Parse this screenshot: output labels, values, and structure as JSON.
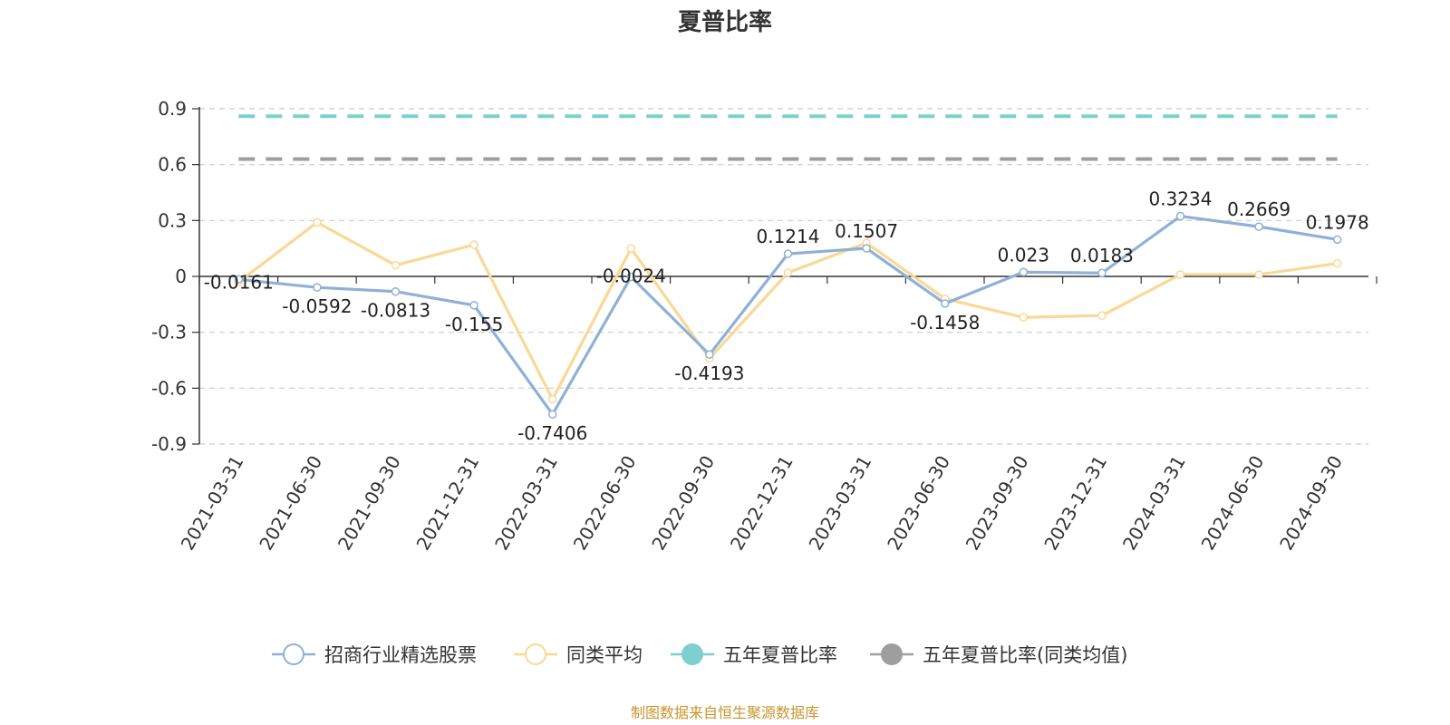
{
  "chart_data": {
    "type": "line",
    "title": "夏普比率",
    "source_note": "制图数据来自恒生聚源数据库",
    "ylim": [
      -0.9,
      0.9
    ],
    "yticks": [
      0.9,
      0.6,
      0.3,
      0,
      -0.3,
      -0.6,
      -0.9
    ],
    "y_tick_labels": [
      "0.9",
      "0.6",
      "0.3",
      "0",
      "-0.3",
      "-0.6",
      "-0.9"
    ],
    "grid": true,
    "legend_position": "bottom",
    "categories": [
      "2021-03-31",
      "2021-06-30",
      "2021-09-30",
      "2021-12-31",
      "2022-03-31",
      "2022-06-30",
      "2022-09-30",
      "2022-12-31",
      "2023-03-31",
      "2023-06-30",
      "2023-09-30",
      "2023-12-31",
      "2024-03-31",
      "2024-06-30",
      "2024-09-30"
    ],
    "series": [
      {
        "name": "招商行业精选股票",
        "color": "#8fb0d8",
        "values": [
          -0.0161,
          -0.0592,
          -0.0813,
          -0.155,
          -0.7406,
          -0.0024,
          -0.4193,
          0.1214,
          0.1507,
          -0.1458,
          0.023,
          0.0183,
          0.3234,
          0.2669,
          0.1978
        ],
        "data_labels": [
          "-0.0161",
          "-0.0592",
          "-0.0813",
          "-0.155",
          "-0.7406",
          "-0.0024",
          "-0.4193",
          "0.1214",
          "0.1507",
          "-0.1458",
          "0.023",
          "0.0183",
          "0.3234",
          "0.2669",
          "0.1978"
        ]
      },
      {
        "name": "同类平均",
        "color": "#fad897",
        "values": [
          -0.03,
          0.29,
          0.06,
          0.17,
          -0.66,
          0.15,
          -0.44,
          0.02,
          0.18,
          -0.12,
          -0.22,
          -0.21,
          0.01,
          0.01,
          0.07
        ]
      }
    ],
    "reference_lines": [
      {
        "name": "五年夏普比率",
        "color": "#7ecfcf",
        "value": 0.86
      },
      {
        "name": "五年夏普比率(同类均值)",
        "color": "#9e9e9e",
        "value": 0.63
      }
    ]
  }
}
